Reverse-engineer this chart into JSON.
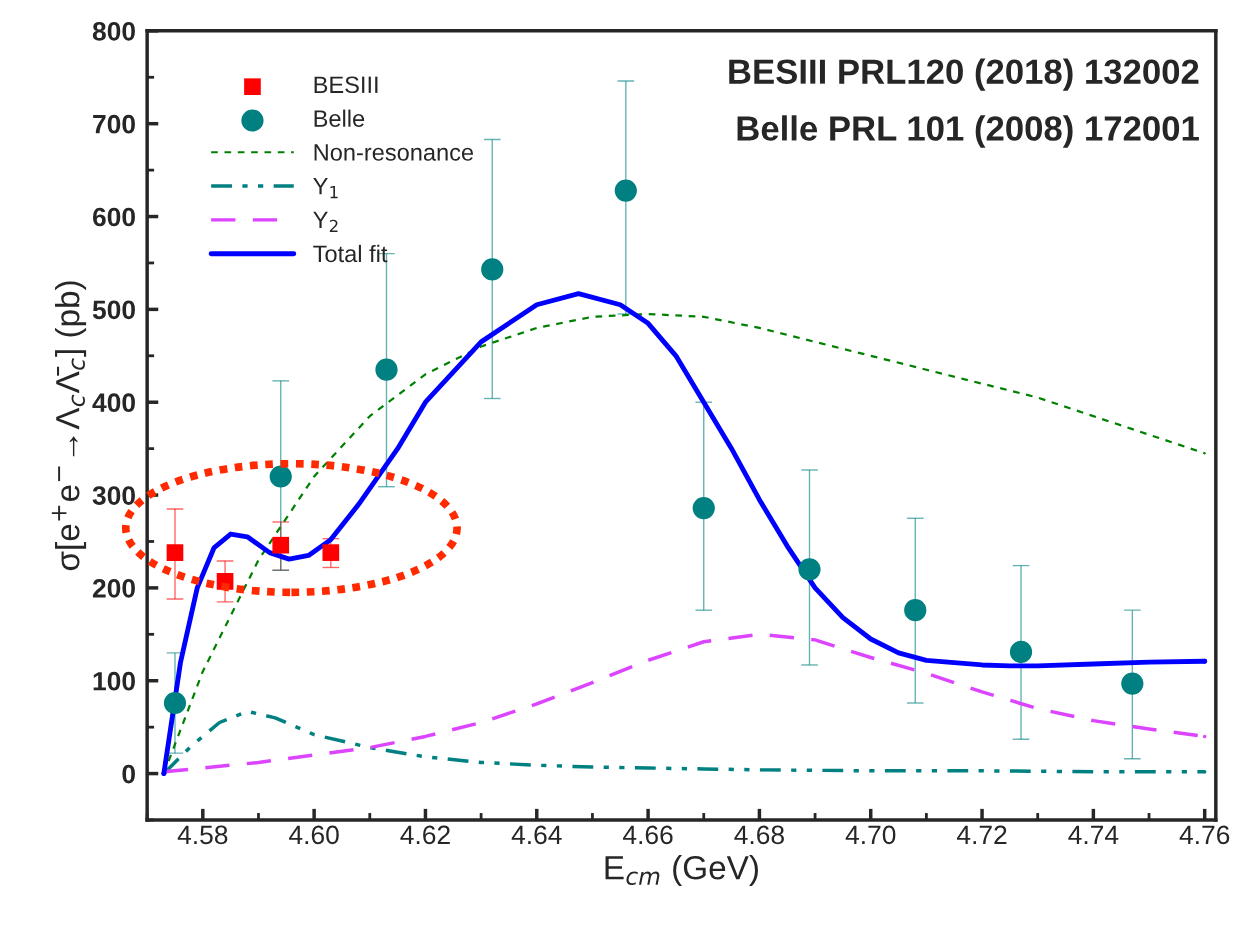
{
  "chart_data": {
    "type": "scatter",
    "xlabel": "E$_{cm}$ (GeV)",
    "ylabel": "σ[e$^{+}$e$^{−}$→Λ$_{c}$Λ̄$_{c}$] (pb)",
    "annotations": [
      "BESIII PRL120 (2018) 132002",
      "Belle PRL 101 (2008) 172001"
    ],
    "xlim": [
      4.57,
      4.762
    ],
    "xticks": [
      4.58,
      {
        "value": 4.6,
        "label": "4.60"
      },
      4.62,
      4.64,
      4.66,
      4.68,
      {
        "value": 4.7,
        "label": "4.70"
      },
      4.72,
      4.74,
      4.76
    ],
    "ylim": [
      -50,
      800
    ],
    "yticks": [
      0,
      100,
      200,
      300,
      400,
      500,
      600,
      700,
      800
    ],
    "grid": false,
    "legend": "top left",
    "series": [
      {
        "name": "BESIII",
        "marker": "square",
        "color": "#ff0000",
        "x": [
          4.575,
          4.584,
          4.594,
          4.603
        ],
        "values": [
          238,
          207,
          246,
          238
        ],
        "errors": [
          [
            188,
            285
          ],
          [
            185,
            229
          ],
          [
            219,
            271
          ],
          [
            222,
            253
          ]
        ]
      },
      {
        "name": "Belle",
        "marker": "circle",
        "color": "#008080",
        "x": [
          4.575,
          4.594,
          4.613,
          4.632,
          4.656,
          4.67,
          4.689,
          4.708,
          4.727,
          4.747
        ],
        "values": [
          76,
          320,
          435,
          543,
          628,
          286,
          220,
          176,
          131,
          97
        ],
        "errors": [
          [
            22,
            130
          ],
          [
            219,
            423
          ],
          [
            309,
            560
          ],
          [
            404,
            683
          ],
          [
            495,
            746
          ],
          [
            176,
            400
          ],
          [
            117,
            327
          ],
          [
            76,
            275
          ],
          [
            37,
            224
          ],
          [
            16,
            176
          ]
        ]
      },
      {
        "name": "Non-resonance",
        "type": "line",
        "line_style": "dotted",
        "color": "#008000",
        "x": [
          4.573,
          4.58,
          4.59,
          4.6,
          4.61,
          4.62,
          4.63,
          4.64,
          4.65,
          4.66,
          4.67,
          4.68,
          4.69,
          4.7,
          4.71,
          4.72,
          4.73,
          4.74,
          4.75,
          4.76
        ],
        "values": [
          0,
          110,
          230,
          320,
          385,
          430,
          460,
          480,
          492,
          495,
          492,
          480,
          465,
          450,
          435,
          420,
          405,
          385,
          365,
          345
        ]
      },
      {
        "name": "Y$_{1}$",
        "type": "line",
        "line_style": "dashdot",
        "color": "#008080",
        "x": [
          4.573,
          4.578,
          4.583,
          4.588,
          4.593,
          4.6,
          4.61,
          4.62,
          4.63,
          4.64,
          4.65,
          4.66,
          4.67,
          4.68,
          4.7,
          4.72,
          4.74,
          4.76
        ],
        "values": [
          0,
          30,
          55,
          67,
          60,
          42,
          28,
          18,
          12,
          9,
          7,
          6,
          5,
          4,
          3,
          3,
          2,
          2
        ]
      },
      {
        "name": "Y$_{2}$",
        "type": "line",
        "line_style": "dashed",
        "color": "#dd44ff",
        "x": [
          4.573,
          4.58,
          4.59,
          4.6,
          4.61,
          4.62,
          4.63,
          4.64,
          4.65,
          4.66,
          4.67,
          4.68,
          4.69,
          4.7,
          4.71,
          4.72,
          4.73,
          4.74,
          4.75,
          4.76
        ],
        "values": [
          2,
          6,
          12,
          20,
          28,
          40,
          55,
          75,
          98,
          122,
          142,
          150,
          144,
          125,
          108,
          88,
          70,
          57,
          48,
          40
        ]
      },
      {
        "name": "Total fit",
        "type": "line",
        "line_style": "solid",
        "color": "#0000ff",
        "x": [
          4.573,
          4.576,
          4.579,
          4.582,
          4.585,
          4.588,
          4.592,
          4.5955,
          4.599,
          4.603,
          4.608,
          4.615,
          4.62,
          4.63,
          4.64,
          4.6475,
          4.655,
          4.66,
          4.665,
          4.67,
          4.675,
          4.68,
          4.685,
          4.69,
          4.695,
          4.7,
          4.705,
          4.71,
          4.72,
          4.725,
          4.73,
          4.74,
          4.75,
          4.76
        ],
        "values": [
          0,
          120,
          200,
          243,
          258,
          255,
          238,
          231,
          235,
          252,
          290,
          350,
          400,
          465,
          505,
          517,
          505,
          485,
          450,
          400,
          350,
          295,
          245,
          200,
          168,
          145,
          130,
          122,
          117,
          116,
          116,
          118,
          120,
          121
        ]
      }
    ]
  }
}
